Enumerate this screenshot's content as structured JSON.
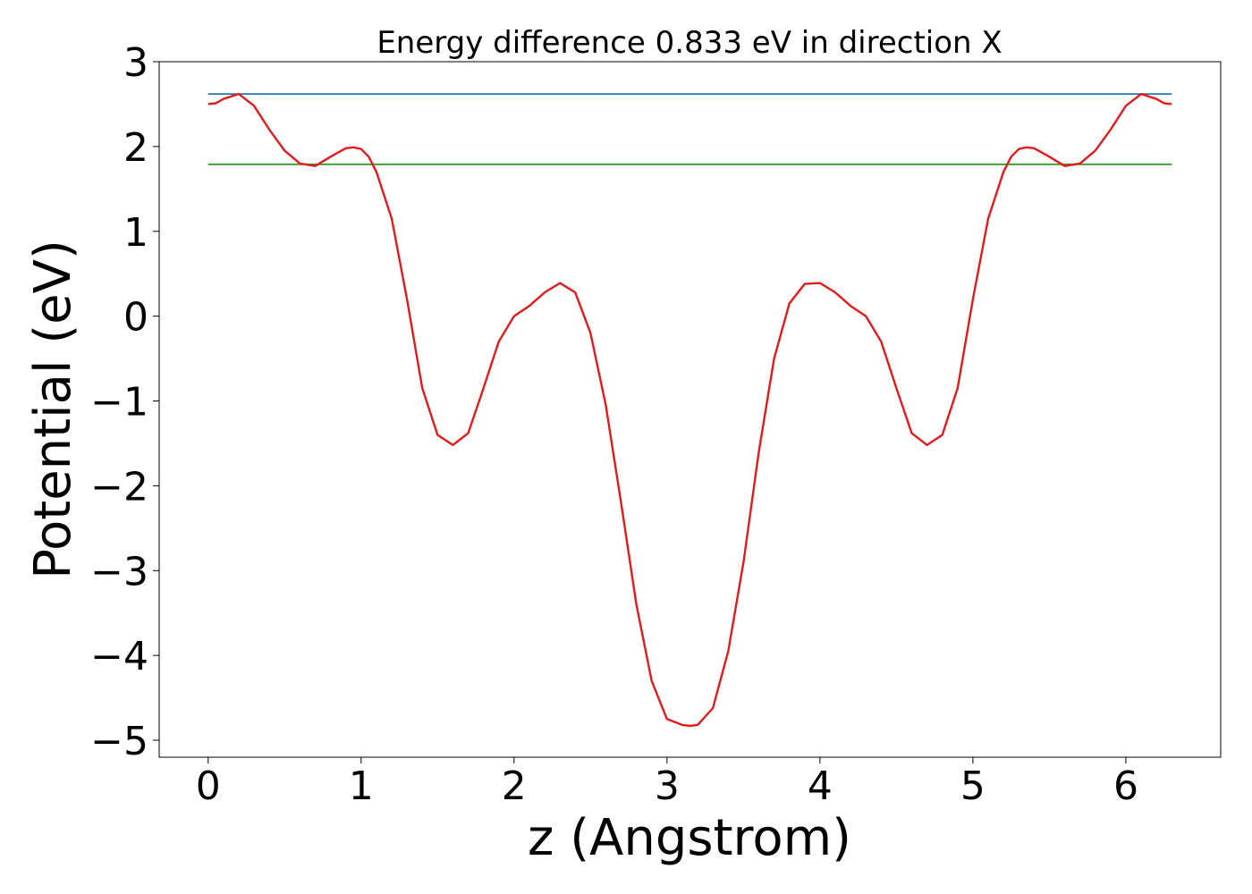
{
  "chart_data": {
    "type": "line",
    "title": "Energy difference 0.833 eV in direction X",
    "xlabel": "z (Angstrom)",
    "ylabel": "Potential (eV)",
    "xlim": [
      -0.32,
      6.62
    ],
    "ylim": [
      -5.2,
      3.0
    ],
    "xticks": [
      0,
      1,
      2,
      3,
      4,
      5,
      6
    ],
    "yticks": [
      3,
      2,
      1,
      0,
      -1,
      -2,
      -3,
      -4,
      -5
    ],
    "xtick_labels": [
      "0",
      "1",
      "2",
      "3",
      "4",
      "5",
      "6"
    ],
    "ytick_labels": [
      "3",
      "2",
      "1",
      "0",
      "−1",
      "−2",
      "−3",
      "−4",
      "−5"
    ],
    "grid": false,
    "series": [
      {
        "color": "#1f77b4",
        "x": [
          0,
          6.3
        ],
        "y": [
          2.62,
          2.62
        ]
      },
      {
        "color": "#2ca02c",
        "x": [
          0,
          6.3
        ],
        "y": [
          1.79,
          1.79
        ]
      },
      {
        "color": "#e31a1c",
        "x": [
          0,
          0.05,
          0.1,
          0.2,
          0.3,
          0.4,
          0.5,
          0.6,
          0.7,
          0.8,
          0.9,
          0.95,
          1.0,
          1.05,
          1.1,
          1.2,
          1.3,
          1.4,
          1.5,
          1.6,
          1.7,
          1.8,
          1.9,
          2.0,
          2.1,
          2.2,
          2.3,
          2.4,
          2.5,
          2.6,
          2.7,
          2.8,
          2.9,
          3.0,
          3.1,
          3.15,
          3.2,
          3.3,
          3.4,
          3.5,
          3.6,
          3.7,
          3.8,
          3.9,
          4.0,
          4.1,
          4.2,
          4.3,
          4.4,
          4.5,
          4.6,
          4.7,
          4.8,
          4.9,
          5.0,
          5.1,
          5.2,
          5.25,
          5.3,
          5.35,
          5.4,
          5.5,
          5.6,
          5.7,
          5.8,
          5.9,
          6.0,
          6.1,
          6.2,
          6.25,
          6.3
        ],
        "y": [
          2.5,
          2.51,
          2.56,
          2.62,
          2.48,
          2.2,
          1.95,
          1.8,
          1.77,
          1.88,
          1.98,
          1.99,
          1.97,
          1.88,
          1.7,
          1.15,
          0.2,
          -0.85,
          -1.4,
          -1.52,
          -1.38,
          -0.85,
          -0.3,
          0.0,
          0.12,
          0.28,
          0.39,
          0.28,
          -0.2,
          -1.05,
          -2.2,
          -3.4,
          -4.3,
          -4.75,
          -4.82,
          -4.83,
          -4.82,
          -4.62,
          -3.95,
          -2.9,
          -1.6,
          -0.5,
          0.15,
          0.38,
          0.39,
          0.28,
          0.12,
          0.0,
          -0.3,
          -0.85,
          -1.38,
          -1.52,
          -1.4,
          -0.85,
          0.2,
          1.15,
          1.7,
          1.88,
          1.97,
          1.99,
          1.98,
          1.88,
          1.77,
          1.8,
          1.95,
          2.2,
          2.48,
          2.62,
          2.56,
          2.51,
          2.5
        ]
      }
    ]
  }
}
